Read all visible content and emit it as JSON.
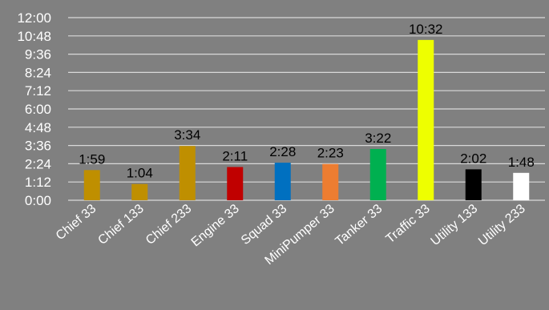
{
  "chart_data": {
    "type": "bar",
    "title": "",
    "xlabel": "",
    "ylabel": "",
    "grid": true,
    "legend": "none",
    "ylim_seconds": [
      0,
      720
    ],
    "y_ticks": [
      "0:00",
      "1:12",
      "2:24",
      "3:36",
      "4:48",
      "6:00",
      "7:12",
      "8:24",
      "9:36",
      "10:48",
      "12:00"
    ],
    "categories": [
      "Chief 33",
      "Chief 133",
      "Chief 233",
      "Engine 33",
      "Squad 33",
      "MiniPumper 33",
      "Tanker 33",
      "Traffic 33",
      "Utility 133",
      "Utility 233"
    ],
    "values_seconds": [
      119,
      64,
      214,
      131,
      148,
      143,
      202,
      632,
      122,
      108
    ],
    "data_labels": [
      "1:59",
      "1:04",
      "3:34",
      "2:11",
      "2:28",
      "2:23",
      "3:22",
      "10:32",
      "2:02",
      "1:48"
    ],
    "colors": [
      "#bf8f00",
      "#bf8f00",
      "#bf8f00",
      "#c00000",
      "#0070c0",
      "#ed7d31",
      "#00b050",
      "#eeff00",
      "#000000",
      "#ffffff"
    ]
  }
}
